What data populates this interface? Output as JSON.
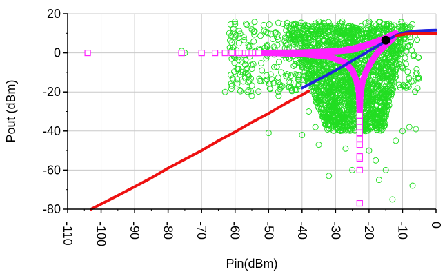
{
  "chart_data": {
    "type": "scatter",
    "title": "",
    "xlabel": "Pin(dBm)",
    "ylabel": "Pout (dBm)",
    "xlim": [
      -110,
      0
    ],
    "ylim": [
      -80,
      20
    ],
    "x_ticks": [
      -110,
      -100,
      -90,
      -80,
      -70,
      -60,
      -50,
      -40,
      -30,
      -20,
      -10,
      0
    ],
    "x_tick_labels": [
      "-110",
      "-100",
      "-90",
      "-80",
      "-70",
      "-60",
      "-50",
      "-40",
      "-30",
      "-20",
      "-10",
      "0"
    ],
    "x_tick_label_rotation": 90,
    "y_ticks": [
      20,
      0,
      -20,
      -40,
      -60,
      -80
    ],
    "y_tick_labels": [
      "20",
      "0",
      "-20",
      "-40",
      "-60",
      "-80"
    ],
    "grid": true,
    "legend": "none",
    "series": [
      {
        "kind": "scatter",
        "marker": "circle-open",
        "color": "#22dd22",
        "cloud": {
          "x_range": [
            -62,
            -5
          ],
          "y_range": [
            -77,
            16
          ],
          "dense_x_range": [
            -45,
            -8
          ],
          "dense_y_range": [
            -40,
            14
          ],
          "point_count": 2200
        },
        "points": [
          [
            -63,
            -20
          ],
          [
            -56,
            -19
          ],
          [
            -55,
            -22
          ],
          [
            -50,
            -41
          ],
          [
            -47,
            -22
          ],
          [
            -41,
            -16
          ],
          [
            -40,
            -42
          ],
          [
            -38,
            -30
          ],
          [
            -36,
            -38
          ],
          [
            -35,
            -47
          ],
          [
            -32,
            -63
          ],
          [
            -30,
            -37
          ],
          [
            -28,
            -34
          ],
          [
            -27,
            -49
          ],
          [
            -25,
            -60
          ],
          [
            -20,
            -50
          ],
          [
            -18,
            -55
          ],
          [
            -17,
            -65
          ],
          [
            -15,
            -60
          ],
          [
            -13,
            -75
          ],
          [
            -12,
            -45
          ],
          [
            -10,
            -40
          ],
          [
            -8,
            -38
          ],
          [
            -7,
            -68
          ],
          [
            -6,
            -39
          ],
          [
            -48,
            10
          ],
          [
            -42,
            15
          ],
          [
            -35,
            16
          ],
          [
            -28,
            16
          ],
          [
            -20,
            16
          ],
          [
            -14,
            15
          ],
          [
            -9,
            14
          ],
          [
            -55,
            12
          ],
          [
            -60,
            8
          ],
          [
            -61,
            -3
          ],
          [
            -76,
            1
          ],
          [
            -75,
            0
          ],
          [
            -57,
            -6
          ],
          [
            -52,
            -9
          ]
        ]
      },
      {
        "kind": "scatter",
        "marker": "square-open",
        "color": "#ff22ff",
        "points": [
          [
            -104,
            0
          ],
          [
            -76,
            0
          ],
          [
            -70,
            0
          ],
          [
            -66,
            0
          ],
          [
            -63,
            0
          ],
          [
            -61,
            0
          ],
          [
            -59,
            0
          ],
          [
            -58,
            0
          ],
          [
            -57,
            0
          ],
          [
            -56,
            0
          ],
          [
            -55,
            0
          ],
          [
            -54,
            0
          ],
          [
            -53,
            0
          ],
          [
            -22.8,
            -77
          ],
          [
            -22.8,
            -60
          ],
          [
            -22.8,
            -54
          ],
          [
            -22.8,
            -53
          ],
          [
            -22.8,
            -47
          ],
          [
            -22.8,
            -44
          ],
          [
            -22.8,
            -41
          ],
          [
            -22.8,
            -38
          ],
          [
            -22.8,
            -35
          ],
          [
            -22.8,
            -32
          ]
        ]
      },
      {
        "kind": "line",
        "name_on_chart": "",
        "color": "#ff22ff",
        "style": "thick",
        "segments": [
          [
            [
              -55,
              0
            ],
            [
              -40,
              0.2
            ],
            [
              -30,
              0.8
            ],
            [
              -25,
              1.5
            ],
            [
              -22,
              3
            ],
            [
              -19,
              5
            ],
            [
              -16,
              7
            ],
            [
              -14,
              8.5
            ],
            [
              -12,
              10
            ]
          ],
          [
            [
              -50,
              0
            ],
            [
              -40,
              -0.5
            ],
            [
              -32,
              -2
            ],
            [
              -27,
              -5
            ],
            [
              -25,
              -9
            ],
            [
              -23.8,
              -14
            ],
            [
              -23,
              -20
            ],
            [
              -22.8,
              -30
            ]
          ],
          [
            [
              -22.8,
              -30
            ],
            [
              -22.6,
              -22
            ],
            [
              -22,
              -15
            ],
            [
              -21,
              -10
            ],
            [
              -19.5,
              -5
            ],
            [
              -17.5,
              0
            ],
            [
              -15,
              4
            ],
            [
              -13,
              7
            ],
            [
              -12,
              10
            ]
          ],
          [
            [
              -60,
              0
            ],
            [
              -45,
              0
            ],
            [
              -35,
              0.3
            ],
            [
              -28,
              1.2
            ],
            [
              -24,
              2.5
            ],
            [
              -20,
              4.5
            ],
            [
              -17,
              6.2
            ],
            [
              -14.5,
              7.8
            ],
            [
              -12.5,
              9
            ]
          ]
        ]
      },
      {
        "kind": "line",
        "color": "#2222dd",
        "points": [
          [
            -40,
            -18
          ],
          [
            -35,
            -13.5
          ],
          [
            -30,
            -9
          ],
          [
            -25,
            -4
          ],
          [
            -20,
            1
          ],
          [
            -15,
            6
          ],
          [
            -12,
            9
          ],
          [
            -9,
            10.5
          ],
          [
            -6,
            11.2
          ],
          [
            -3,
            11.5
          ],
          [
            0,
            11.6
          ]
        ]
      },
      {
        "kind": "line",
        "color": "#ee1111",
        "points": [
          [
            -103,
            -80
          ],
          [
            -95,
            -73
          ],
          [
            -90,
            -68.5
          ],
          [
            -85,
            -64
          ],
          [
            -80,
            -59
          ],
          [
            -75,
            -54.5
          ],
          [
            -70,
            -50
          ],
          [
            -65,
            -45
          ],
          [
            -60,
            -40.5
          ],
          [
            -55,
            -35.5
          ],
          [
            -50,
            -31
          ],
          [
            -45,
            -26
          ],
          [
            -40,
            -21.5
          ],
          [
            -38,
            -19.5
          ]
        ]
      },
      {
        "kind": "line",
        "color": "#ee1111",
        "points": [
          [
            -12,
            8.8
          ],
          [
            -9,
            9.6
          ],
          [
            -6,
            9.9
          ],
          [
            -3,
            10
          ],
          [
            0,
            10
          ]
        ]
      },
      {
        "kind": "marker",
        "marker": "circle-filled",
        "color": "#000000",
        "points": [
          [
            -15,
            6.5
          ]
        ]
      }
    ]
  }
}
